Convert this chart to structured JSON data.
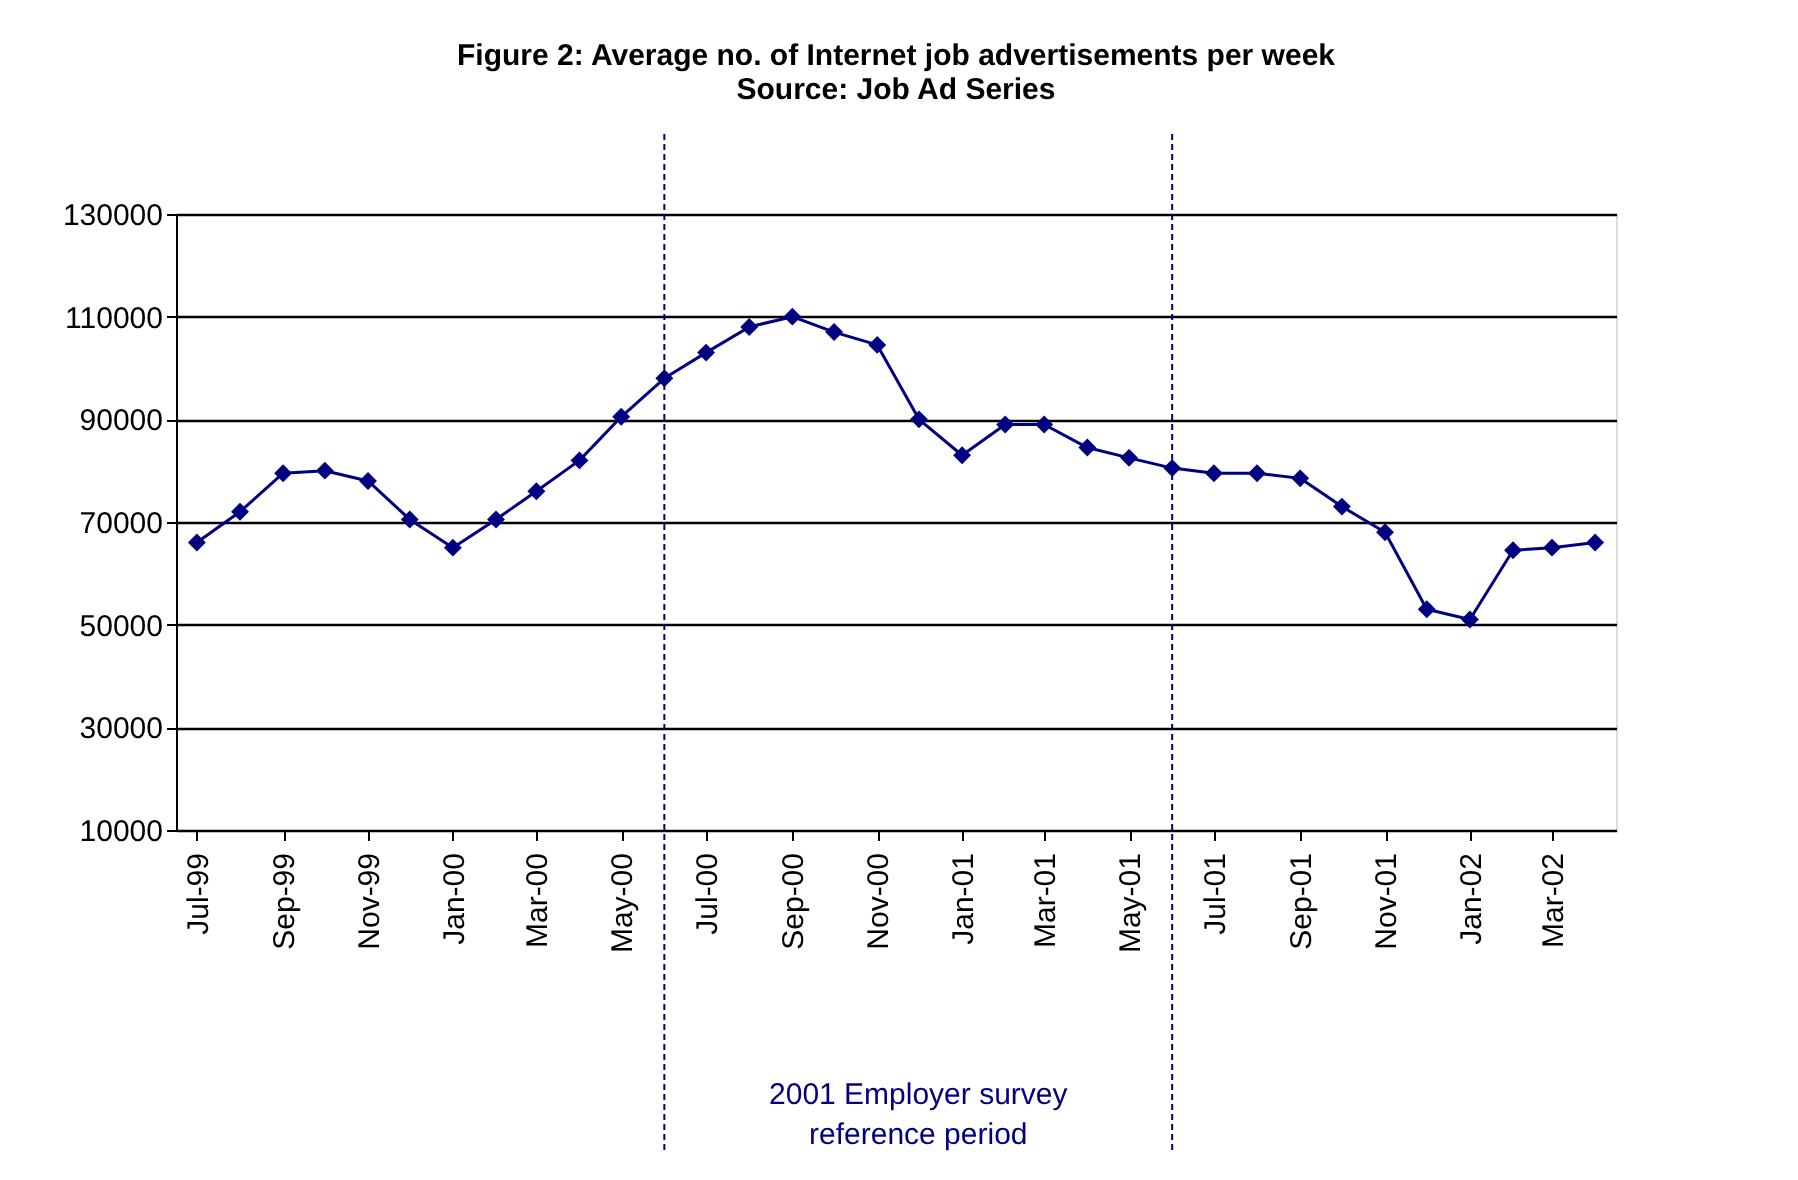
{
  "chart_data": {
    "type": "line",
    "title": "Figure 2: Average no. of Internet job advertisements per week",
    "subtitle": "Source: Job Ad Series",
    "x": [
      "1999-07",
      "1999-08",
      "1999-09",
      "1999-10",
      "1999-11",
      "1999-12",
      "2000-01",
      "2000-02",
      "2000-03",
      "2000-04",
      "2000-05",
      "2000-06",
      "2000-07",
      "2000-08",
      "2000-09",
      "2000-10",
      "2000-11",
      "2000-12",
      "2001-01",
      "2001-02",
      "2001-03",
      "2001-04",
      "2001-05",
      "2001-06",
      "2001-07",
      "2001-08",
      "2001-09",
      "2001-10",
      "2001-11",
      "2001-12",
      "2002-01",
      "2002-02",
      "2002-03",
      "2002-04"
    ],
    "series": [
      {
        "color": "#000080",
        "values": [
          66000,
          72000,
          79500,
          80000,
          78000,
          70500,
          65000,
          70500,
          76000,
          82000,
          90500,
          98000,
          103000,
          108000,
          110000,
          107000,
          104500,
          90000,
          83000,
          89000,
          89000,
          84500,
          82500,
          80500,
          79500,
          79500,
          78500,
          73000,
          68000,
          53000,
          51000,
          64500,
          65000,
          66000
        ]
      }
    ],
    "xlim": [
      "1999-06-16",
      "2002-04-16"
    ],
    "xticks": [
      {
        "value": "1999-07",
        "label": "Jul-99"
      },
      {
        "value": "1999-09",
        "label": "Sep-99"
      },
      {
        "value": "1999-11",
        "label": "Nov-99"
      },
      {
        "value": "2000-01",
        "label": "Jan-00"
      },
      {
        "value": "2000-03",
        "label": "Mar-00"
      },
      {
        "value": "2000-05",
        "label": "May-00"
      },
      {
        "value": "2000-07",
        "label": "Jul-00"
      },
      {
        "value": "2000-09",
        "label": "Sep-00"
      },
      {
        "value": "2000-11",
        "label": "Nov-00"
      },
      {
        "value": "2001-01",
        "label": "Jan-01"
      },
      {
        "value": "2001-03",
        "label": "Mar-01"
      },
      {
        "value": "2001-05",
        "label": "May-01"
      },
      {
        "value": "2001-07",
        "label": "Jul-01"
      },
      {
        "value": "2001-09",
        "label": "Sep-01"
      },
      {
        "value": "2001-11",
        "label": "Nov-01"
      },
      {
        "value": "2002-01",
        "label": "Jan-02"
      },
      {
        "value": "2002-03",
        "label": "Mar-02"
      }
    ],
    "ylim": [
      10000,
      130000
    ],
    "yticks": [
      10000,
      30000,
      50000,
      70000,
      90000,
      110000,
      130000
    ],
    "ref_lines": [
      {
        "axis": "x",
        "value": "2000-06",
        "color": "#000080",
        "line_style": "dashed"
      },
      {
        "axis": "x",
        "value": "2001-06",
        "color": "#000080",
        "line_style": "dashed"
      }
    ],
    "annotations": [
      "2001 Employer survey reference period"
    ],
    "grid": "y",
    "legend": false,
    "marker": "diamond",
    "line_style": "solid"
  }
}
